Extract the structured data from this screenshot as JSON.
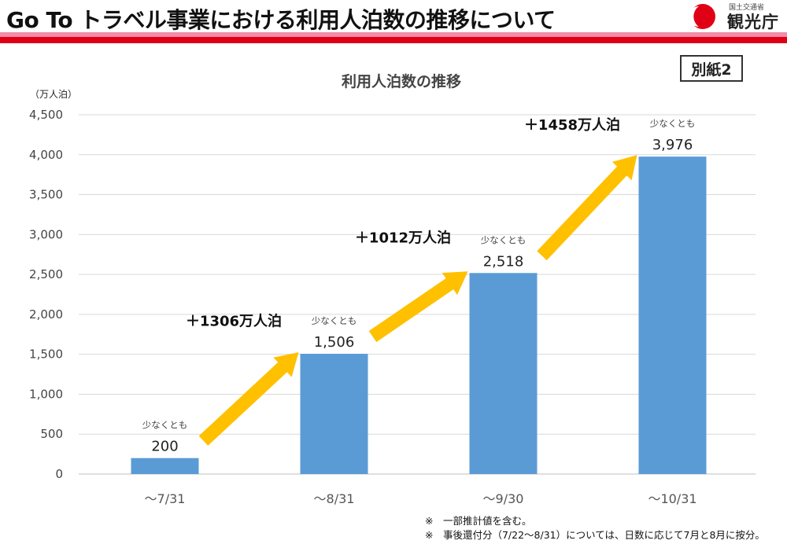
{
  "header": {
    "title": "Go To トラベル事業における利用人泊数の推移について",
    "logo_ministry": "国土交通省",
    "logo_name": "観光庁",
    "attachment_label": "別紙2"
  },
  "colors": {
    "bar": "#5b9bd5",
    "arrow": "#ffc000",
    "title_rule_pink": "#f28ca8",
    "title_rule_red": "#e00016",
    "logo_red": "#e00016"
  },
  "chart_data": {
    "type": "bar",
    "title": "利用人泊数の推移",
    "unit_label": "（万人泊）",
    "categories": [
      "〜7/31",
      "〜8/31",
      "〜9/30",
      "〜10/31"
    ],
    "values": [
      200,
      1506,
      2518,
      3976
    ],
    "value_labels": [
      "200",
      "1,506",
      "2,518",
      "3,976"
    ],
    "bar_note": "少なくとも",
    "ylim": [
      0,
      4500
    ],
    "yticks": [
      0,
      500,
      1000,
      1500,
      2000,
      2500,
      3000,
      3500,
      4000,
      4500
    ],
    "ytick_labels": [
      "0",
      "500",
      "1,000",
      "1,500",
      "2,000",
      "2,500",
      "3,000",
      "3,500",
      "4,000",
      "4,500"
    ],
    "grid": true,
    "increments": [
      "＋1306万人泊",
      "＋1012万人泊",
      "＋1458万人泊"
    ]
  },
  "notes": [
    "※　一部推計値を含む。",
    "※　事後還付分（7/22〜8/31）については、日数に応じて7月と8月に按分。"
  ]
}
